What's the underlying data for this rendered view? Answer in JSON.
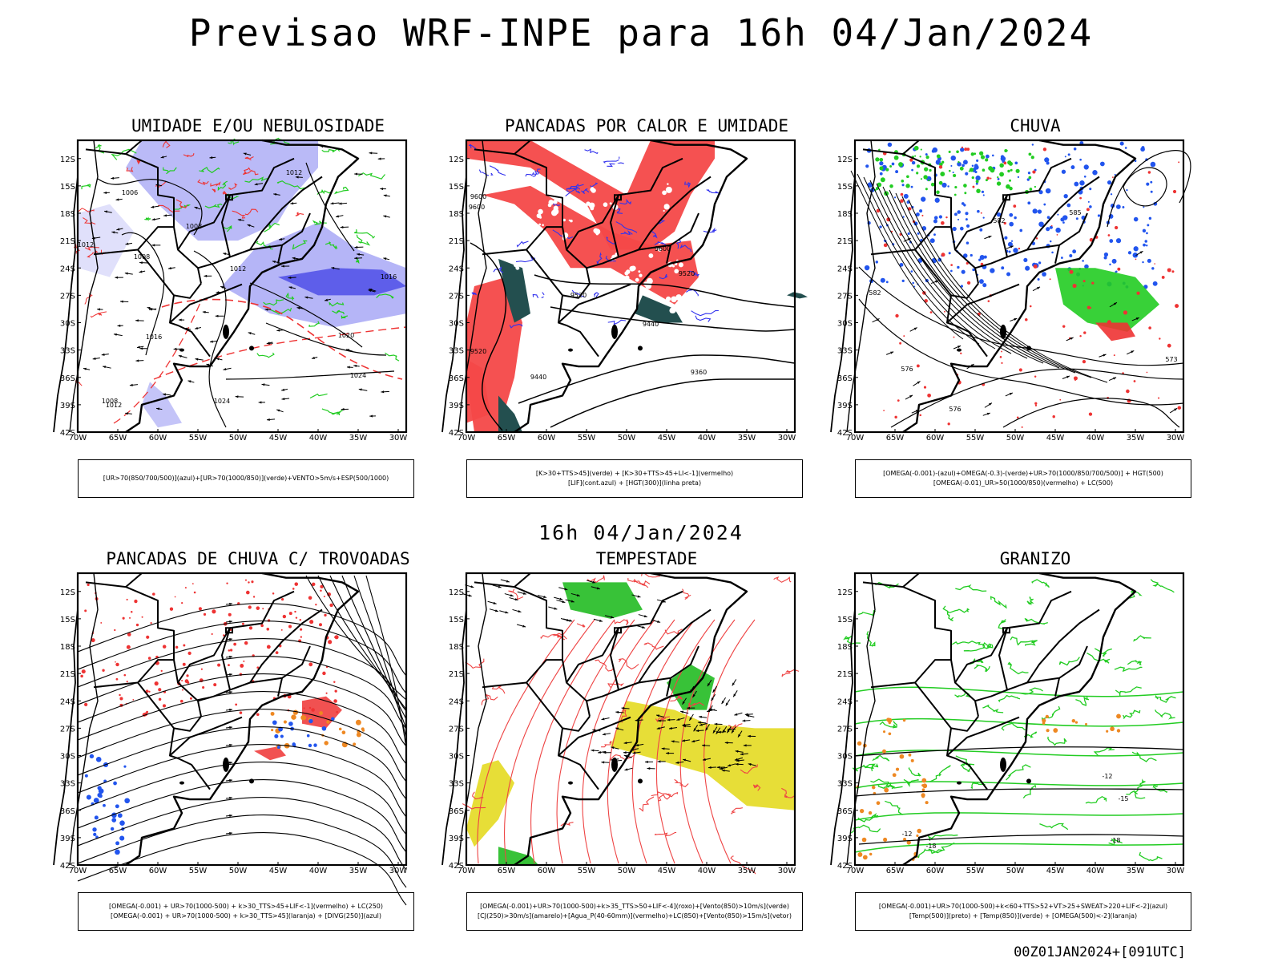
{
  "title": "Previsao WRF-INPE  para 16h 04/Jan/2024",
  "middle_title": "16h 04/Jan/2024",
  "run_label": "00Z01JAN2024+[091UTC]",
  "axes": {
    "lat_ticks": [
      "12S",
      "15S",
      "18S",
      "21S",
      "24S",
      "27S",
      "30S",
      "33S",
      "36S",
      "39S",
      "42S"
    ],
    "lon_ticks": [
      "70W",
      "65W",
      "60W",
      "55W",
      "50W",
      "45W",
      "40W",
      "35W",
      "30W"
    ]
  },
  "panels": [
    {
      "id": "umidade",
      "title": "UMIDADE E/OU NEBULOSIDADE",
      "legend": [
        "[UR>70(850/700/500)](azul)+[UR>70(1000/850)](verde)+VENTO>5m/s+ESP(500/1000)"
      ],
      "contour_labels": [
        "1012",
        "1006",
        "1008",
        "1008",
        "1012",
        "1016",
        "1020",
        "1024",
        "1024",
        "1012",
        "1008",
        "1016",
        "1012"
      ],
      "colors": {
        "blue": "#9c9cf4",
        "deep_blue": "#4f4fe8",
        "green": "#22cc22",
        "red": "#ee3333"
      }
    },
    {
      "id": "pancadas-calor",
      "title": "PANCADAS POR CALOR E UMIDADE",
      "legend": [
        "[K>30+TTS>45](verde) + [K>30+TTS>45+LI<-1](vermelho)",
        "[LIF](cont.azul) + [HGT(300)](linha preta)"
      ],
      "contour_labels": [
        "9600",
        "9600",
        "9520",
        "9440",
        "9520",
        "9600",
        "9520",
        "9440",
        "9360"
      ],
      "colors": {
        "red": "#f44848",
        "teal": "#234f4f",
        "blue": "#3333ee"
      }
    },
    {
      "id": "chuva",
      "title": "CHUVA",
      "legend": [
        "[OMEGA(-0.001)-(azul)+OMEGA(-0.3)-(verde)+UR>70(1000/850/700/500)] + HGT(500)",
        "[OMEGA(-0.01)_UR>50(1000/850)(vermelho) + LC(500)"
      ],
      "contour_labels": [
        "582",
        "585",
        "576",
        "573",
        "576",
        "582"
      ],
      "colors": {
        "blue": "#2255ee",
        "green": "#22cc22",
        "red": "#ee3333"
      }
    },
    {
      "id": "pancadas-trovoadas",
      "title": "PANCADAS DE CHUVA C/ TROVOADAS",
      "legend": [
        "[OMEGA(-0.001) + UR>70(1000-500) + k>30_TTS>45+LIF<-1](vermelho) + LC(250)",
        "[OMEGA(-0.001) + UR>70(1000-500) + k>30_TTS>45](laranja) + [DIVG(250)](azul)"
      ],
      "contour_labels": [],
      "colors": {
        "red": "#ee3333",
        "orange": "#ee8822",
        "blue": "#2255ee"
      }
    },
    {
      "id": "tempestade",
      "title": "TEMPESTADE",
      "legend": [
        "[OMEGA(-0.001)+UR>70(1000-500)+k>35_TTS>50+LIF<-4](roxo)+[Vento(850)>10m/s](verde)",
        "[CJ(250)>30m/s](amarelo)+[Agua_P(40-60mm)](vermelho)+LC(850)+[Vento(850)>15m/s](vetor)"
      ],
      "contour_labels": [],
      "colors": {
        "yellow": "#e6dc2c",
        "green": "#22bb22",
        "red": "#ee4444"
      }
    },
    {
      "id": "granizo",
      "title": "GRANIZO",
      "legend": [
        "[OMEGA(-0.001)+UR>70(1000-500)+k<60+TTS>52+VT>25+SWEAT>220+LIF<-2](azul)",
        "[Temp(500)](preto) + [Temp(850)](verde) + [OMEGA(500)<-2](laranja)"
      ],
      "contour_labels": [
        "-12",
        "-15",
        "-18",
        "-12",
        "-18"
      ],
      "colors": {
        "green": "#22cc22",
        "orange": "#ee8822",
        "black": "#000000"
      }
    }
  ]
}
